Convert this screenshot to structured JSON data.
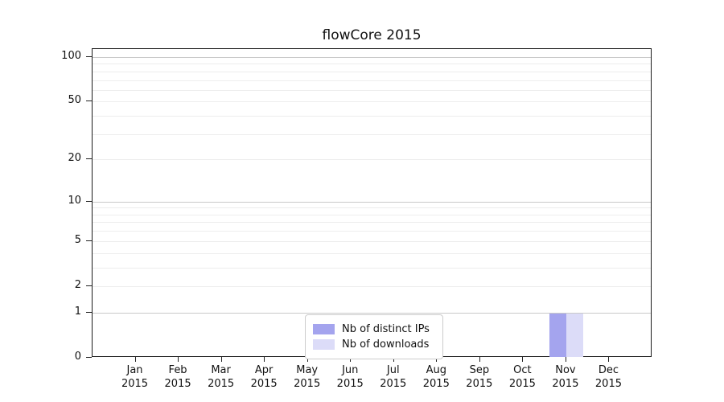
{
  "header": {
    "title": "flowCore 2015"
  },
  "legend": {
    "items": [
      {
        "label": "Nb of distinct IPs",
        "color": "#a4a4ee"
      },
      {
        "label": "Nb of downloads",
        "color": "#dcdcf8"
      }
    ]
  },
  "chart_data": {
    "type": "bar",
    "title": "flowCore 2015",
    "categories": [
      "Jan",
      "Feb",
      "Mar",
      "Apr",
      "May",
      "Jun",
      "Jul",
      "Aug",
      "Sep",
      "Oct",
      "Nov",
      "Dec"
    ],
    "x_year": "2015",
    "series": [
      {
        "name": "Nb of distinct IPs",
        "color": "#a4a4ee",
        "values": [
          0,
          0,
          0,
          0,
          0,
          0,
          0,
          0,
          0,
          0,
          1,
          0
        ]
      },
      {
        "name": "Nb of downloads",
        "color": "#dcdcf8",
        "values": [
          0,
          0,
          0,
          0,
          0,
          0,
          0,
          0,
          0,
          0,
          1,
          0
        ]
      }
    ],
    "xlabel": "",
    "ylabel": "",
    "y_scale": "log10(1+y)",
    "ylim": [
      0,
      113.3
    ],
    "y_major_tick_labels": [
      0,
      1,
      2,
      5,
      10,
      20,
      50,
      100
    ],
    "y_gridlines_major": [
      1,
      10,
      100
    ],
    "y_gridlines_minor": [
      2,
      3,
      4,
      5,
      6,
      7,
      8,
      9,
      20,
      30,
      40,
      50,
      60,
      70,
      80,
      90
    ],
    "grid": true,
    "legend_position": "lower center"
  }
}
